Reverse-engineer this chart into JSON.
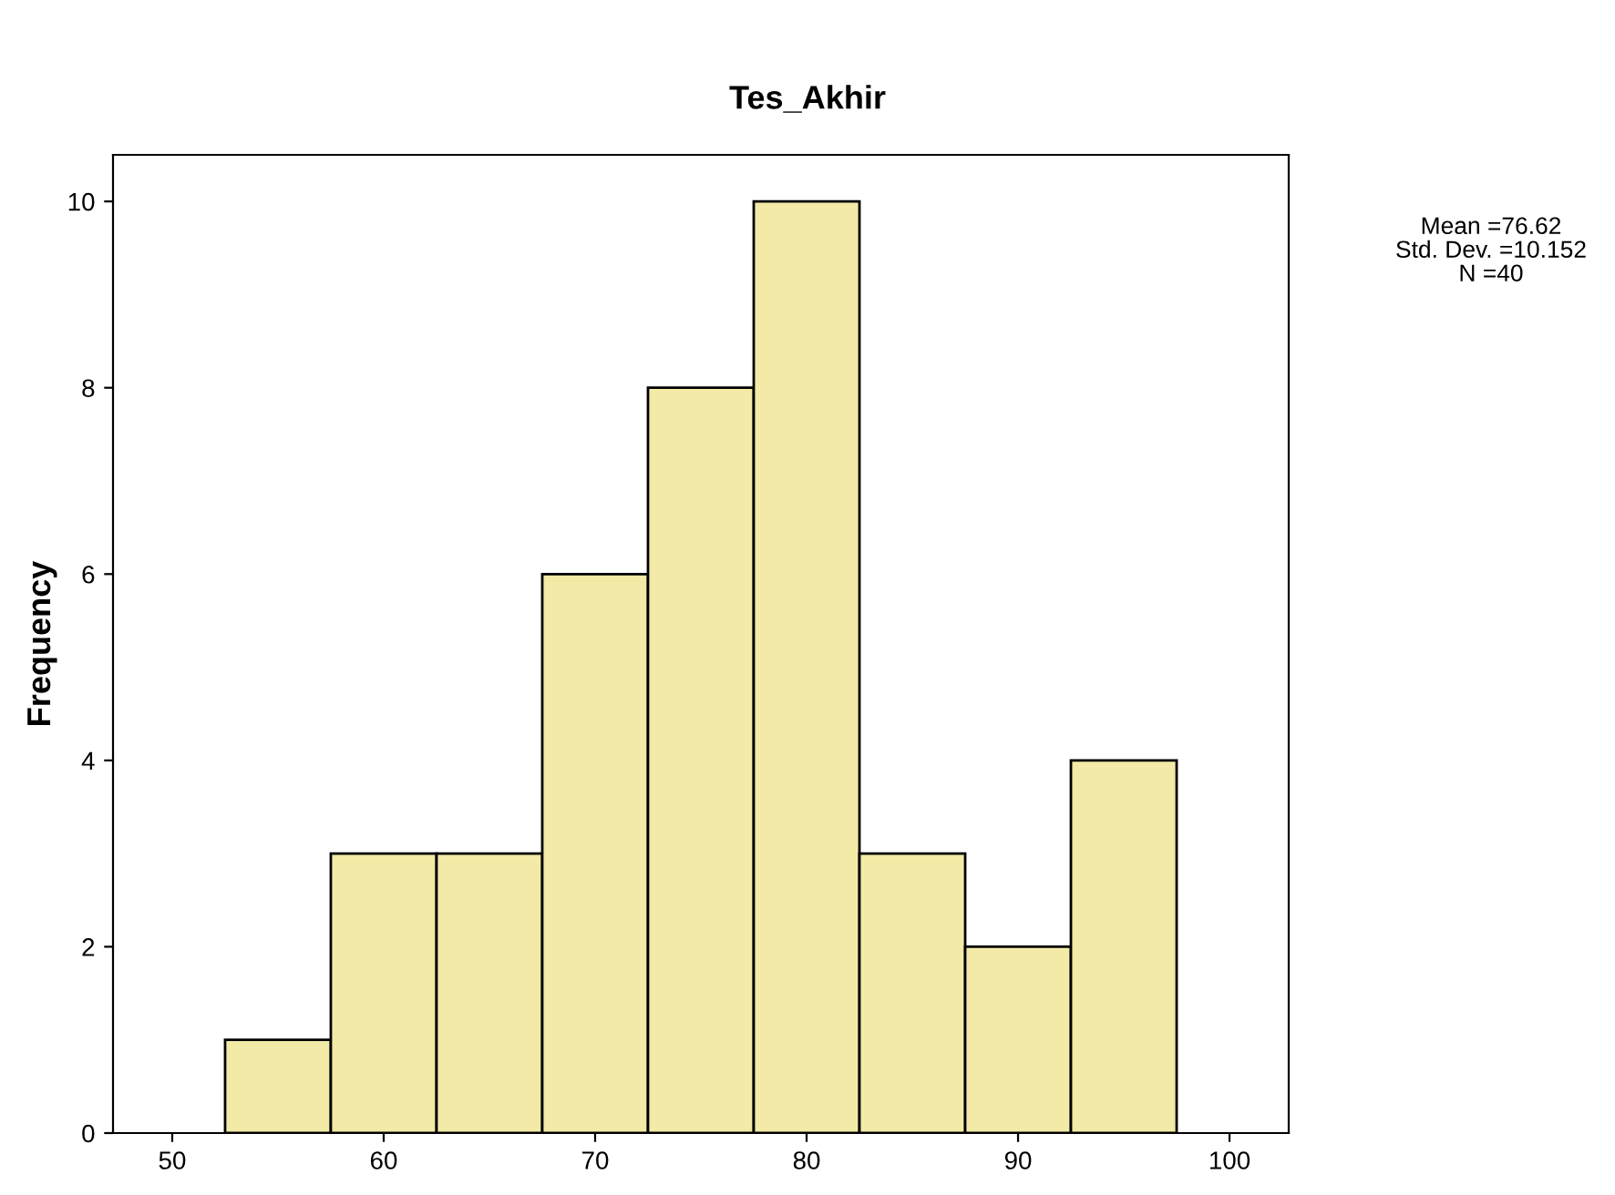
{
  "chart_data": {
    "type": "histogram",
    "title": "Tes_Akhir",
    "ylabel": "Frequency",
    "bins": [
      52.5,
      57.5,
      62.5,
      67.5,
      72.5,
      77.5,
      82.5,
      87.5,
      92.5,
      97.5
    ],
    "values": [
      1,
      3,
      3,
      6,
      8,
      10,
      3,
      2,
      4
    ],
    "color": "#f2eaa6",
    "xlim": [
      47.2,
      102.8
    ],
    "xticks": [
      50,
      60,
      70,
      80,
      90,
      100
    ],
    "ylim": [
      0,
      10.5
    ],
    "yticks": [
      0,
      2,
      4,
      6,
      8,
      10
    ],
    "grid": false,
    "annotations": [
      "Mean =76.62",
      "Std. Dev. =10.152",
      "N =40"
    ]
  }
}
